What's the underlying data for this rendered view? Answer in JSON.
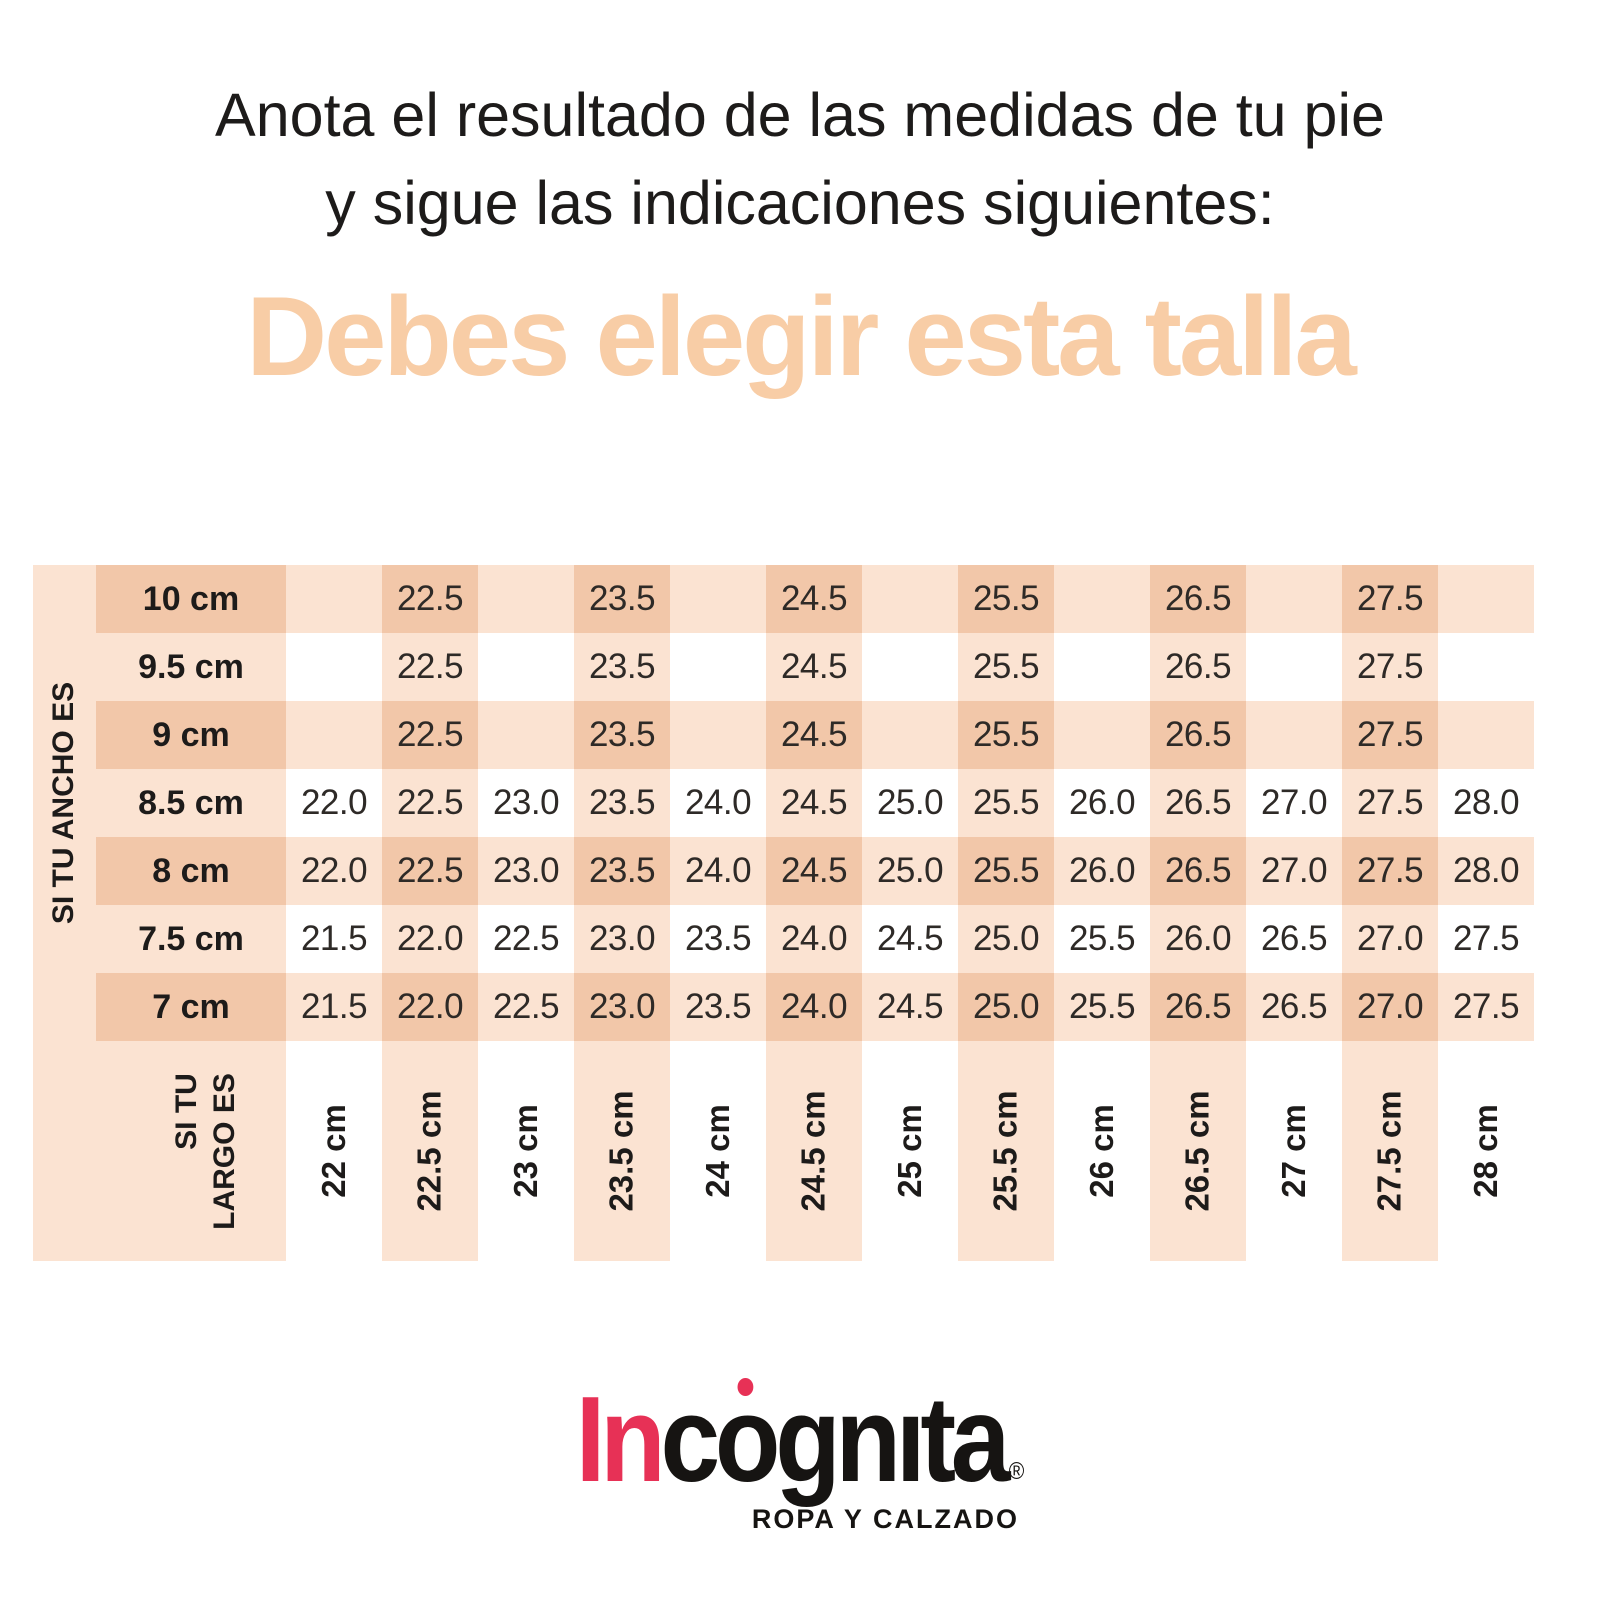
{
  "title": {
    "line1": "Anota el resultado de las medidas de tu pie",
    "line2": "y sigue las indicaciones siguientes:"
  },
  "headline": {
    "text": "Debes elegir esta talla",
    "color": "#f8cda6"
  },
  "table": {
    "left_axis_label": "SI TU ANCHO ES",
    "bottom_axis_label": {
      "line1": "SI TU",
      "line2": "LARGO ES"
    },
    "colors": {
      "cell_dark": "#f2c7a9",
      "cell_light": "#fbe3d2",
      "cell_empty": "#ffffff"
    }
  },
  "chart_data": {
    "type": "table",
    "title": "Debes elegir esta talla",
    "x_axis_label": "SI TU LARGO ES",
    "y_axis_label": "SI TU ANCHO ES",
    "columns": [
      "22 cm",
      "22.5 cm",
      "23 cm",
      "23.5 cm",
      "24 cm",
      "24.5 cm",
      "25 cm",
      "25.5 cm",
      "26 cm",
      "26.5 cm",
      "27 cm",
      "27.5 cm",
      "28 cm"
    ],
    "rows": [
      "10 cm",
      "9.5 cm",
      "9 cm",
      "8.5 cm",
      "8 cm",
      "7.5 cm",
      "7 cm"
    ],
    "values": [
      [
        "",
        "22.5",
        "",
        "23.5",
        "",
        "24.5",
        "",
        "25.5",
        "",
        "26.5",
        "",
        "27.5",
        ""
      ],
      [
        "",
        "22.5",
        "",
        "23.5",
        "",
        "24.5",
        "",
        "25.5",
        "",
        "26.5",
        "",
        "27.5",
        ""
      ],
      [
        "",
        "22.5",
        "",
        "23.5",
        "",
        "24.5",
        "",
        "25.5",
        "",
        "26.5",
        "",
        "27.5",
        ""
      ],
      [
        "22.0",
        "22.5",
        "23.0",
        "23.5",
        "24.0",
        "24.5",
        "25.0",
        "25.5",
        "26.0",
        "26.5",
        "27.0",
        "27.5",
        "28.0"
      ],
      [
        "22.0",
        "22.5",
        "23.0",
        "23.5",
        "24.0",
        "24.5",
        "25.0",
        "25.5",
        "26.0",
        "26.5",
        "27.0",
        "27.5",
        "28.0"
      ],
      [
        "21.5",
        "22.0",
        "22.5",
        "23.0",
        "23.5",
        "24.0",
        "24.5",
        "25.0",
        "25.5",
        "26.0",
        "26.5",
        "27.0",
        "27.5"
      ],
      [
        "21.5",
        "22.0",
        "22.5",
        "23.0",
        "23.5",
        "24.0",
        "24.5",
        "25.0",
        "25.5",
        "26.5",
        "26.5",
        "27.0",
        "27.5"
      ]
    ]
  },
  "logo": {
    "text": "Incógnita®",
    "part_in": "In",
    "part_c": "c",
    "part_o": "o",
    "part_rest": "gnıta",
    "registered": "®",
    "tagline": "ROPA Y CALZADO",
    "brand_red": "#e73156"
  }
}
